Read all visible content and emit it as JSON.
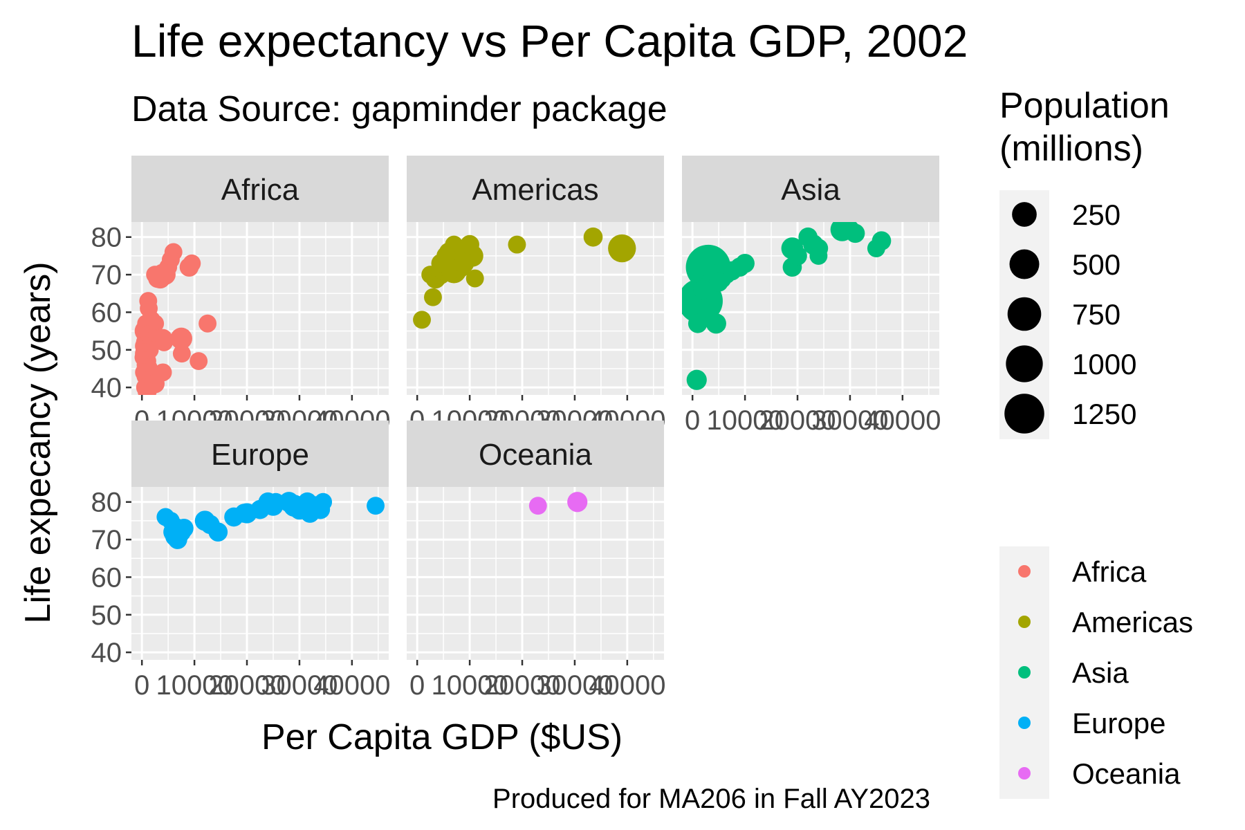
{
  "chart_data": {
    "type": "scatter",
    "title": "Life expectancy vs Per Capita GDP, 2002",
    "subtitle": "Data Source: gapminder package",
    "xlabel": "Per Capita GDP ($US)",
    "ylabel": "Life expecancy (years)",
    "caption": "Produced for MA206 in Fall AY2023",
    "xlim": [
      -2000,
      47000
    ],
    "ylim": [
      38,
      84
    ],
    "x_ticks": [
      0,
      10000,
      20000,
      30000,
      40000
    ],
    "x_tick_labels": [
      "0",
      "10000",
      "20000",
      "30000",
      "40000"
    ],
    "y_ticks": [
      40,
      50,
      60,
      70,
      80
    ],
    "y_tick_labels": [
      "40",
      "50",
      "60",
      "70",
      "80"
    ],
    "grid": true,
    "legend_position": "right",
    "size_legend": {
      "title": "Population (millions)",
      "values": [
        250,
        500,
        750,
        1000,
        1250
      ],
      "labels": [
        "250",
        "500",
        "750",
        "1000",
        "1250"
      ]
    },
    "color_legend": {
      "entries": [
        {
          "label": "Africa",
          "color": "#F8766D"
        },
        {
          "label": "Americas",
          "color": "#A3A500"
        },
        {
          "label": "Asia",
          "color": "#00BF7D"
        },
        {
          "label": "Europe",
          "color": "#00B0F6"
        },
        {
          "label": "Oceania",
          "color": "#E76BF3"
        }
      ]
    },
    "facets": [
      {
        "name": "Africa",
        "color": "#F8766D",
        "points": [
          [
            6000,
            76,
            10
          ],
          [
            5500,
            74,
            10
          ],
          [
            5000,
            72,
            10
          ],
          [
            4500,
            70,
            20
          ],
          [
            3500,
            69,
            20
          ],
          [
            4000,
            70,
            30
          ],
          [
            3000,
            69,
            15
          ],
          [
            2500,
            70,
            10
          ],
          [
            9000,
            72,
            15
          ],
          [
            9500,
            73,
            10
          ],
          [
            1200,
            63,
            10
          ],
          [
            1300,
            61,
            10
          ],
          [
            1800,
            58,
            10
          ],
          [
            2500,
            57,
            10
          ],
          [
            800,
            57,
            10
          ],
          [
            1500,
            56,
            10
          ],
          [
            700,
            55,
            30
          ],
          [
            1200,
            54,
            15
          ],
          [
            1600,
            53,
            20
          ],
          [
            2200,
            53,
            10
          ],
          [
            800,
            52,
            20
          ],
          [
            4000,
            53,
            15
          ],
          [
            4200,
            52,
            10
          ],
          [
            500,
            51,
            15
          ],
          [
            1000,
            50,
            20
          ],
          [
            1500,
            50,
            10
          ],
          [
            600,
            49,
            20
          ],
          [
            300,
            48,
            10
          ],
          [
            900,
            47,
            15
          ],
          [
            700,
            46,
            10
          ],
          [
            1100,
            45,
            20
          ],
          [
            400,
            44,
            10
          ],
          [
            800,
            43,
            15
          ],
          [
            1300,
            42,
            10
          ],
          [
            2500,
            41,
            15
          ],
          [
            600,
            40,
            10
          ],
          [
            1000,
            39,
            15
          ],
          [
            7500,
            53,
            30
          ],
          [
            7600,
            49,
            10
          ],
          [
            10800,
            47,
            10
          ],
          [
            12500,
            57,
            10
          ],
          [
            4000,
            44,
            10
          ]
        ]
      },
      {
        "name": "Americas",
        "color": "#A3A500",
        "points": [
          [
            900,
            58,
            10
          ],
          [
            3000,
            64,
            10
          ],
          [
            2500,
            70,
            10
          ],
          [
            3500,
            69,
            20
          ],
          [
            4500,
            70,
            15
          ],
          [
            5000,
            71,
            15
          ],
          [
            6000,
            72,
            30
          ],
          [
            7000,
            71,
            50
          ],
          [
            8000,
            72,
            30
          ],
          [
            9000,
            73,
            15
          ],
          [
            7500,
            74,
            30
          ],
          [
            6500,
            74,
            15
          ],
          [
            10500,
            75,
            30
          ],
          [
            6000,
            76,
            15
          ],
          [
            7500,
            77,
            15
          ],
          [
            8500,
            76,
            10
          ],
          [
            10000,
            78,
            15
          ],
          [
            7000,
            78,
            10
          ],
          [
            11000,
            69,
            10
          ],
          [
            19000,
            78,
            10
          ],
          [
            33500,
            80,
            15
          ],
          [
            39000,
            77,
            80
          ],
          [
            4500,
            73,
            15
          ],
          [
            5500,
            75,
            15
          ]
        ]
      },
      {
        "name": "Asia",
        "color": "#00BF7D",
        "points": [
          [
            3000,
            72,
            350
          ],
          [
            1500,
            63,
            350
          ],
          [
            1000,
            57,
            15
          ],
          [
            4500,
            57,
            20
          ],
          [
            800,
            42,
            20
          ],
          [
            3000,
            67,
            15
          ],
          [
            5500,
            69,
            20
          ],
          [
            6500,
            70,
            10
          ],
          [
            7500,
            71,
            15
          ],
          [
            9000,
            72,
            15
          ],
          [
            10000,
            73,
            15
          ],
          [
            19000,
            72,
            15
          ],
          [
            19000,
            77,
            30
          ],
          [
            20000,
            75,
            15
          ],
          [
            22000,
            80,
            15
          ],
          [
            23000,
            78,
            20
          ],
          [
            24000,
            77,
            15
          ],
          [
            24000,
            75,
            10
          ],
          [
            28500,
            82,
            40
          ],
          [
            30000,
            82,
            15
          ],
          [
            31000,
            81,
            15
          ],
          [
            35000,
            77,
            10
          ],
          [
            36000,
            79,
            15
          ],
          [
            4000,
            70,
            20
          ],
          [
            5000,
            68,
            15
          ],
          [
            2000,
            66,
            15
          ]
        ]
      },
      {
        "name": "Europe",
        "color": "#00B0F6",
        "points": [
          [
            4500,
            76,
            10
          ],
          [
            5500,
            75,
            10
          ],
          [
            6500,
            73,
            20
          ],
          [
            6000,
            72,
            20
          ],
          [
            6500,
            71,
            30
          ],
          [
            7000,
            71,
            15
          ],
          [
            7500,
            72,
            15
          ],
          [
            8000,
            73,
            15
          ],
          [
            6800,
            70,
            15
          ],
          [
            12000,
            75,
            20
          ],
          [
            13000,
            74,
            15
          ],
          [
            14500,
            72,
            15
          ],
          [
            17500,
            76,
            15
          ],
          [
            19500,
            77,
            15
          ],
          [
            20000,
            77,
            20
          ],
          [
            22500,
            78,
            15
          ],
          [
            25000,
            79,
            20
          ],
          [
            25500,
            80,
            10
          ],
          [
            28000,
            80,
            20
          ],
          [
            29000,
            79,
            30
          ],
          [
            30000,
            78,
            20
          ],
          [
            31000,
            79,
            15
          ],
          [
            31500,
            80,
            15
          ],
          [
            33000,
            79,
            15
          ],
          [
            34000,
            78,
            15
          ],
          [
            34500,
            80,
            10
          ],
          [
            32000,
            77,
            15
          ],
          [
            44500,
            79,
            10
          ],
          [
            24000,
            80,
            15
          ]
        ]
      },
      {
        "name": "Oceania",
        "color": "#E76BF3",
        "points": [
          [
            23000,
            79,
            10
          ],
          [
            30500,
            80,
            20
          ]
        ]
      }
    ]
  }
}
